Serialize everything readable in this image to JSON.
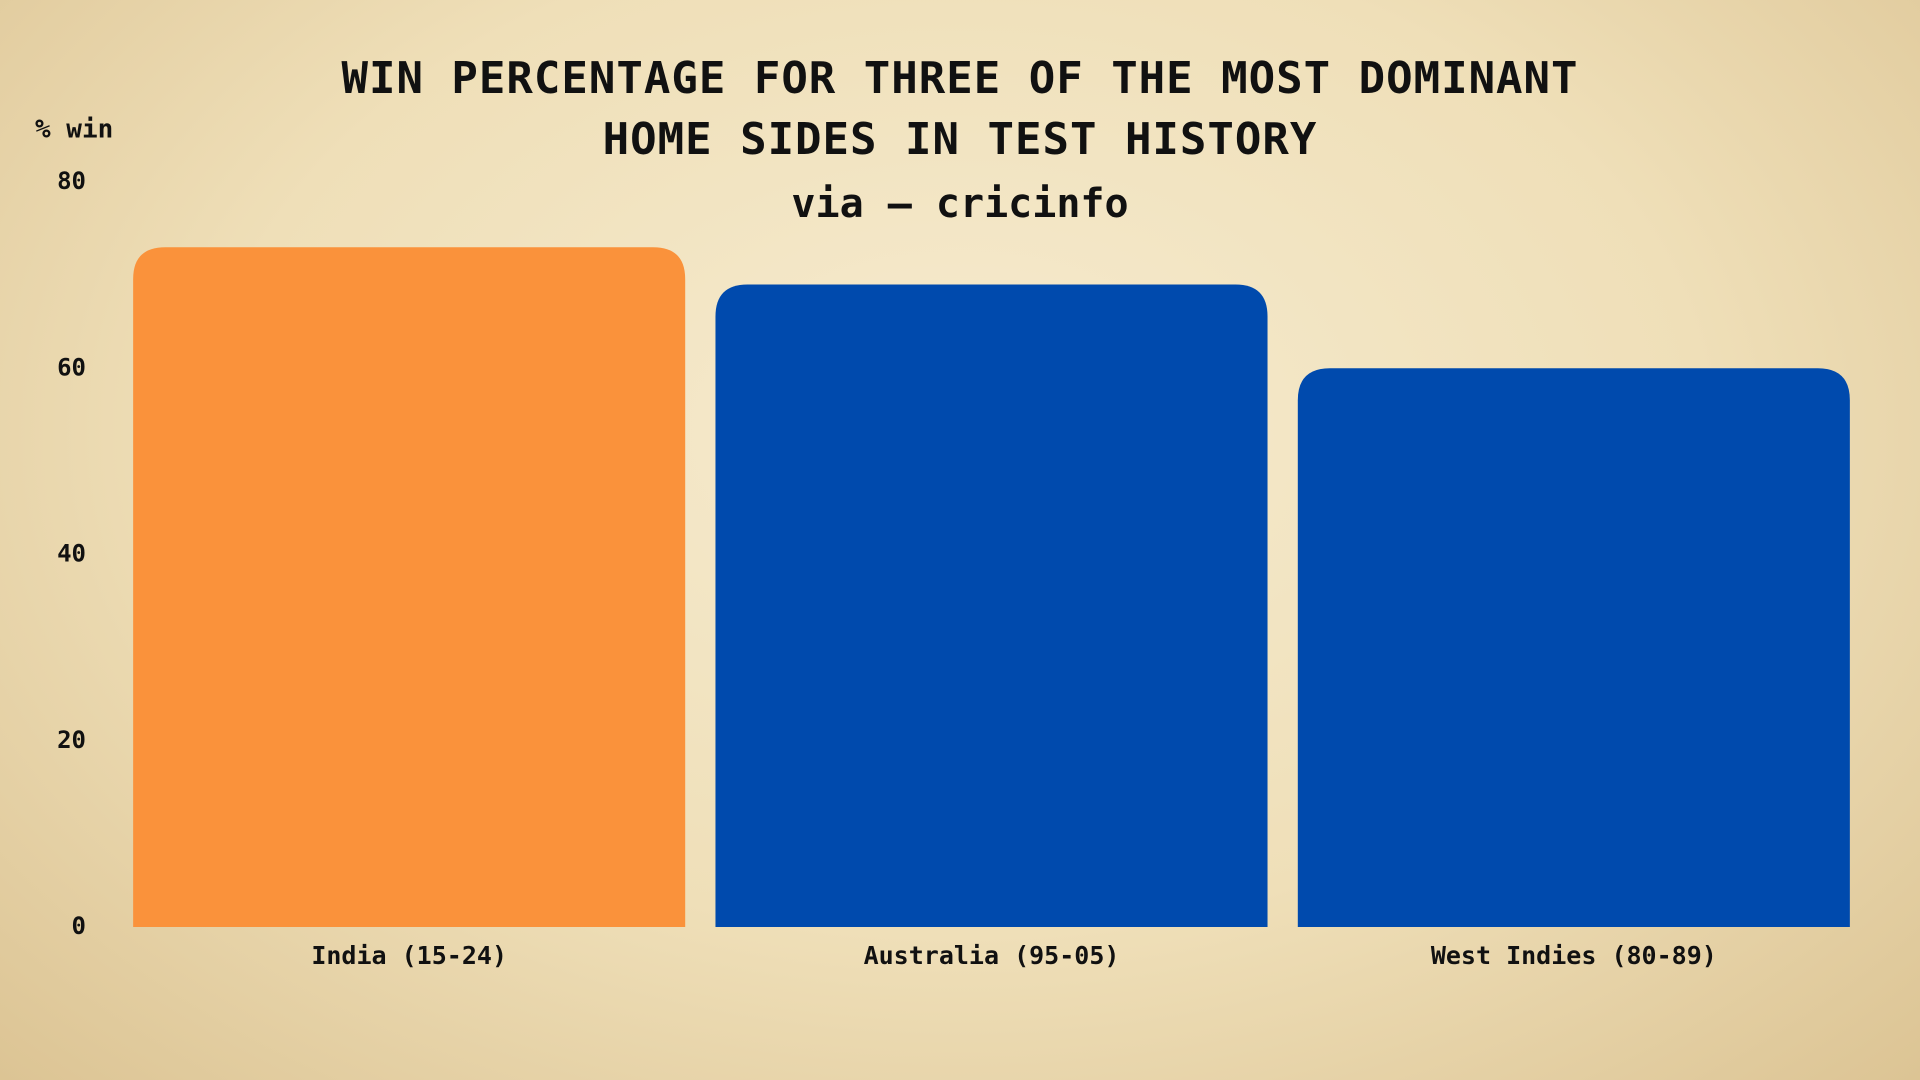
{
  "chart_data": {
    "type": "bar",
    "title": "WIN PERCENTAGE FOR THREE OF THE MOST DOMINANT HOME SIDES IN TEST HISTORY",
    "subtitle": "via – cricinfo",
    "y_label": "% win",
    "categories": [
      "India (15-24)",
      "Australia (95-05)",
      "West Indies (80-89)"
    ],
    "values": [
      73,
      69,
      60
    ],
    "colors": [
      "#fa923b",
      "#004aad",
      "#004aad"
    ],
    "ylim": [
      0,
      80
    ],
    "yticks": [
      0,
      20,
      40,
      60,
      80
    ],
    "grid": false
  }
}
